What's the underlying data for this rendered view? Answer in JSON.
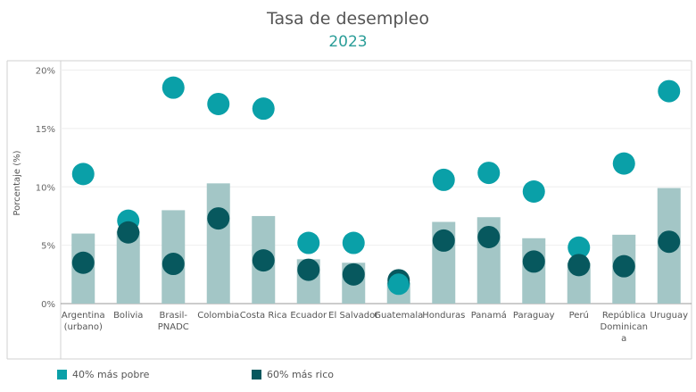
{
  "title": "Tasa de desempleo",
  "subtitle": "2023",
  "colors": {
    "subtitle": "#2a9d98",
    "bar": "#a3c6c6",
    "poor": "#0aa0a8",
    "rich": "#07585e",
    "axis": "#9a9a9a",
    "grid": "#eeeeee"
  },
  "chart_data": {
    "type": "bar",
    "title": "Tasa de desempleo",
    "subtitle": "2023",
    "ylabel": "Porcentaje (%)",
    "xlabel": "",
    "ylim": [
      0,
      20.5
    ],
    "yticks": [
      0,
      5,
      10,
      15,
      20
    ],
    "ytick_labels": [
      "0%",
      "5%",
      "10%",
      "15%",
      "20%"
    ],
    "categories": [
      "Argentina (urbano)",
      "Bolivia",
      "Brasil-PNADC",
      "Colombia",
      "Costa Rica",
      "Ecuador",
      "El Salvador",
      "Guatemala",
      "Honduras",
      "Panamá",
      "Paraguay",
      "Perú",
      "República Dominicana",
      "Uruguay"
    ],
    "category_lines": [
      [
        "Argentina",
        "(urbano)"
      ],
      [
        "Bolivia"
      ],
      [
        "Brasil-",
        "PNADC"
      ],
      [
        "Colombia"
      ],
      [
        "Costa Rica"
      ],
      [
        "Ecuador"
      ],
      [
        "El Salvador"
      ],
      [
        "Guatemala"
      ],
      [
        "Honduras"
      ],
      [
        "Panamá"
      ],
      [
        "Paraguay"
      ],
      [
        "Perú"
      ],
      [
        "República",
        "Dominican",
        "a"
      ],
      [
        "Uruguay"
      ]
    ],
    "grid": "horizontal",
    "legend_position": "bottom-left",
    "series": [
      {
        "name": "",
        "kind": "bar",
        "values": [
          6.0,
          6.2,
          8.0,
          10.3,
          7.5,
          3.8,
          3.5,
          1.8,
          7.0,
          7.4,
          5.6,
          3.5,
          5.9,
          9.9
        ]
      },
      {
        "name": "40% más pobre",
        "kind": "circle",
        "values": [
          11.1,
          7.1,
          18.5,
          17.1,
          16.7,
          5.2,
          5.2,
          1.7,
          10.6,
          11.2,
          9.6,
          4.8,
          12.0,
          18.2
        ]
      },
      {
        "name": "60% más rico",
        "kind": "circle",
        "values": [
          3.5,
          6.1,
          3.4,
          7.3,
          3.7,
          2.9,
          2.5,
          2.0,
          5.4,
          5.7,
          3.6,
          3.3,
          3.2,
          5.3
        ]
      }
    ]
  }
}
